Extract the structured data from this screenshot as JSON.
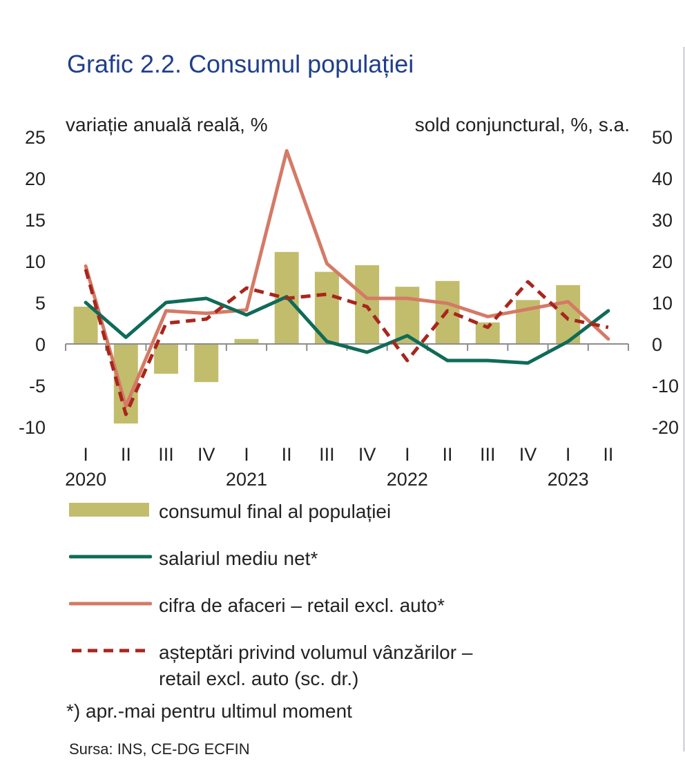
{
  "title": "Grafic 2.2. Consumul populației",
  "chart_data": {
    "type": "bar",
    "left_axis_label": "variație anuală reală, %",
    "right_axis_label": "sold conjunctural, %, s.a.",
    "ylim_left": [
      -10,
      25
    ],
    "ylim_right": [
      -20,
      50
    ],
    "yticks_left": [
      25,
      20,
      15,
      10,
      5,
      0,
      -5,
      -10
    ],
    "yticks_right": [
      50,
      40,
      30,
      20,
      10,
      0,
      -10,
      -20
    ],
    "categories": [
      "I",
      "II",
      "III",
      "IV",
      "I",
      "II",
      "III",
      "IV",
      "I",
      "II",
      "III",
      "IV",
      "I",
      "II"
    ],
    "years": [
      {
        "label": "2020",
        "index": 0
      },
      {
        "label": "2021",
        "index": 4
      },
      {
        "label": "2022",
        "index": 8
      },
      {
        "label": "2023",
        "index": 12
      }
    ],
    "grid": false,
    "legend_placement": "bottom",
    "series": [
      {
        "name": "consumul final al populației",
        "type": "bar",
        "axis": "left",
        "color": "#c2bd6c",
        "values": [
          4.5,
          -9.6,
          -3.6,
          -4.6,
          0.6,
          11.1,
          8.7,
          9.5,
          6.9,
          7.6,
          2.6,
          5.3,
          7.1,
          null
        ]
      },
      {
        "name": "salariul mediu net*",
        "type": "line",
        "axis": "left",
        "color": "#0f6b58",
        "values": [
          5.0,
          0.8,
          5.0,
          5.5,
          3.5,
          5.7,
          0.3,
          -1.0,
          1.0,
          -2.0,
          -2.0,
          -2.3,
          0.3,
          4.0
        ]
      },
      {
        "name": "cifra de afaceri – retail excl. auto*",
        "type": "line",
        "axis": "left",
        "color": "#d47a66",
        "values": [
          9.4,
          -7.5,
          4.0,
          3.7,
          4.1,
          23.3,
          9.7,
          5.5,
          5.5,
          4.9,
          3.3,
          4.2,
          5.1,
          0.6
        ]
      },
      {
        "name": "așteptări privind volumul vânzărilor – retail excl. auto (sc. dr.)",
        "type": "line",
        "axis": "right",
        "dashed": true,
        "color": "#a8261c",
        "values": [
          18,
          -17,
          5,
          6,
          13.5,
          11,
          12,
          9,
          -4,
          8,
          4,
          15,
          6,
          4
        ]
      }
    ]
  },
  "legend": [
    {
      "label": "consumul final al populației"
    },
    {
      "label": "salariul mediu net*"
    },
    {
      "label": "cifra de afaceri – retail excl. auto*"
    },
    {
      "label": "așteptări privind volumul vânzărilor –\nretail excl. auto (sc. dr.)"
    }
  ],
  "footnote": "*) apr.-mai pentru ultimul moment",
  "source": "Sursa: INS, CE-DG ECFIN"
}
